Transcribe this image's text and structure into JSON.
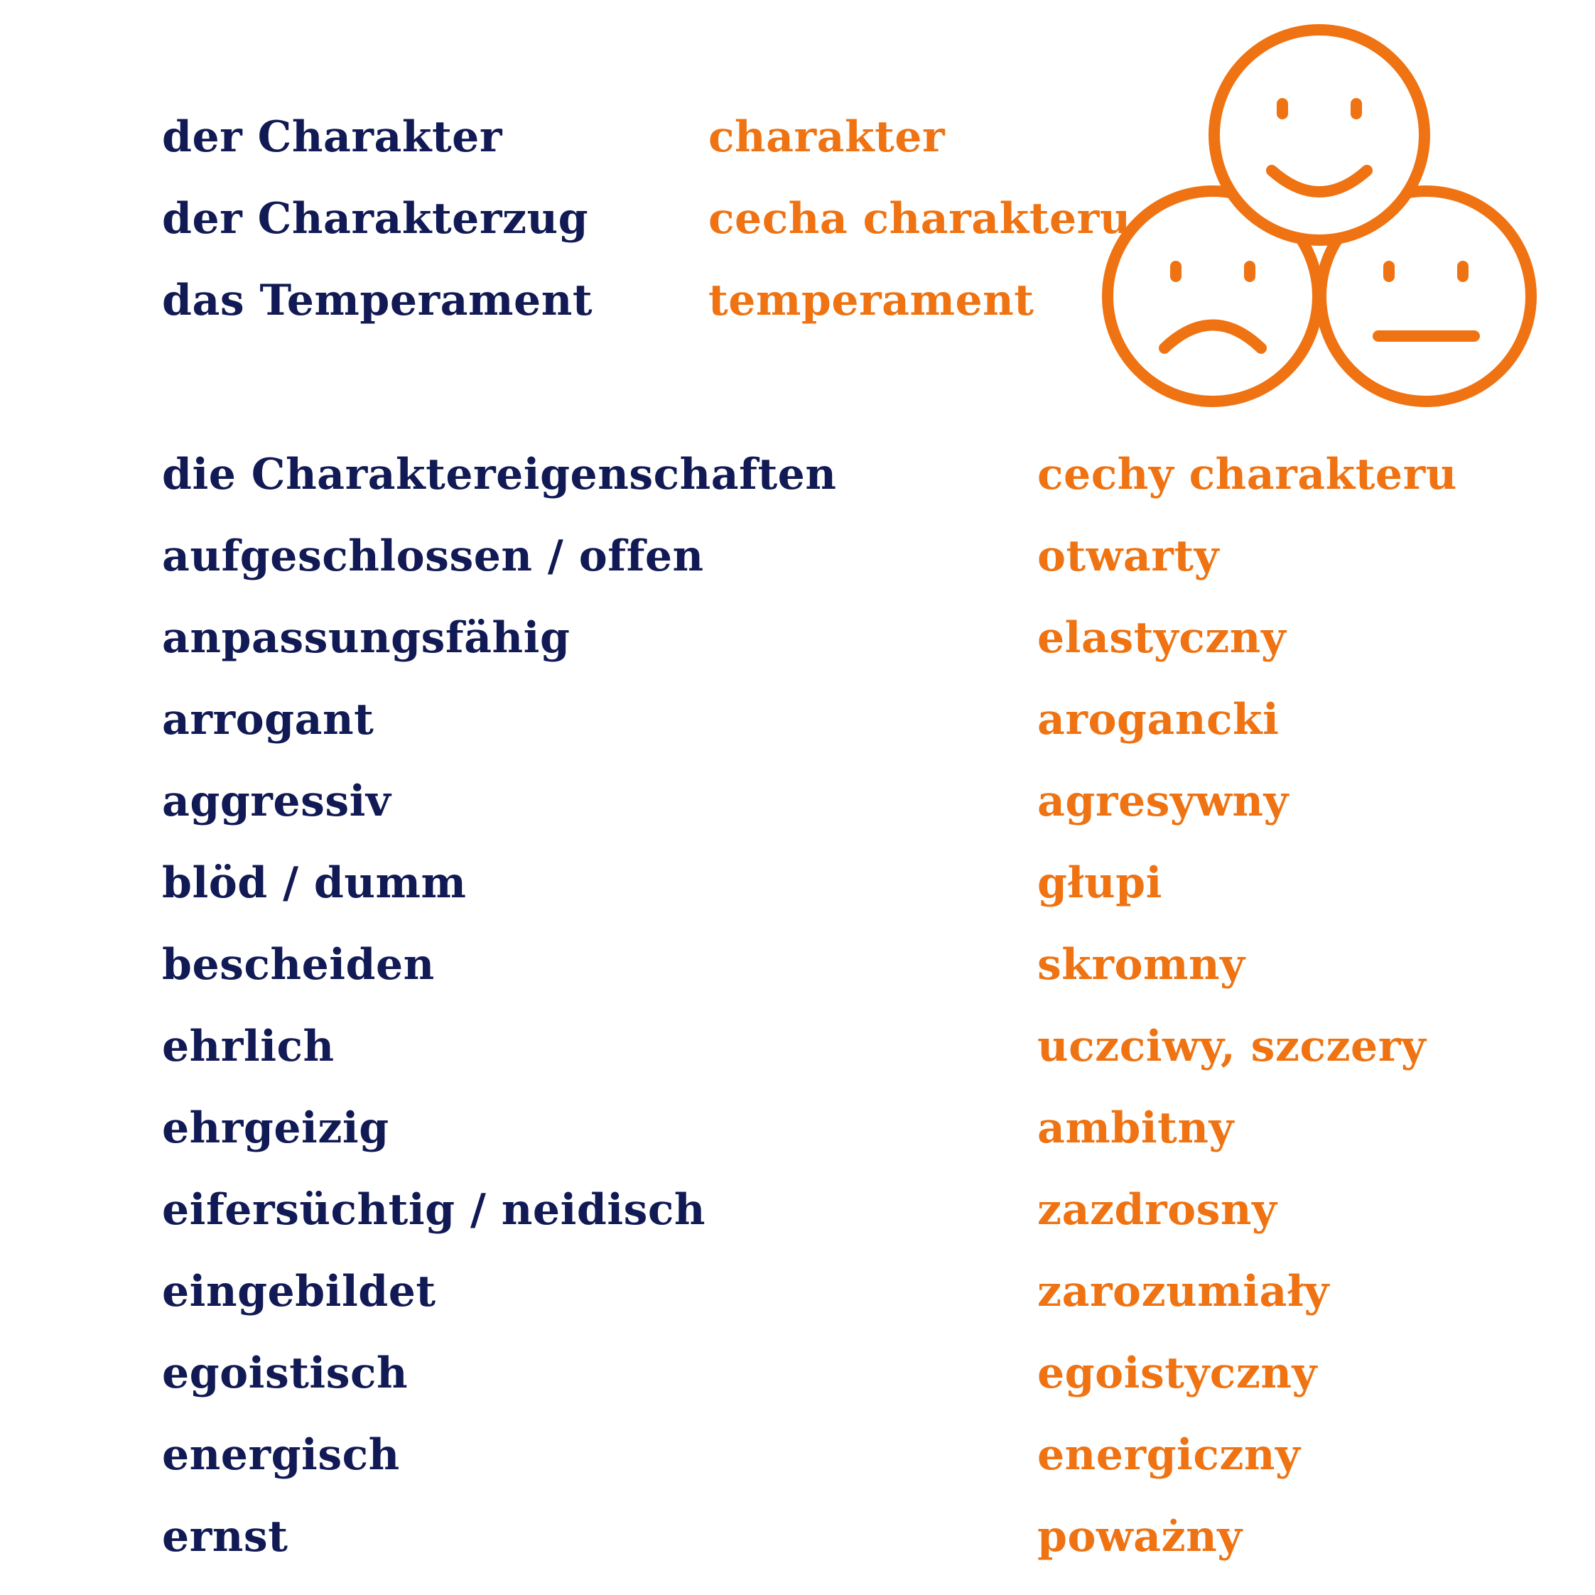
{
  "colors": {
    "german_text": "#111a54",
    "polish_text": "#ef7312",
    "icon": "#ef7312",
    "background": "#ffffff"
  },
  "top_terms": [
    {
      "de": "der Charakter",
      "pl": "charakter"
    },
    {
      "de": "der Charakterzug",
      "pl": "cecha charakteru"
    },
    {
      "de": "das Temperament",
      "pl": "temperament"
    }
  ],
  "icon": {
    "name": "emotion-faces-icon",
    "faces": [
      "happy-face-icon",
      "sad-face-icon",
      "neutral-face-icon"
    ]
  },
  "traits": [
    {
      "de": "die Charaktereigenschaften",
      "pl": "cechy charakteru"
    },
    {
      "de": "aufgeschlossen / offen",
      "pl": "otwarty"
    },
    {
      "de": "anpassungsfähig",
      "pl": "elastyczny"
    },
    {
      "de": "arrogant",
      "pl": "arogancki"
    },
    {
      "de": "aggressiv",
      "pl": "agresywny"
    },
    {
      "de": "blöd / dumm",
      "pl": "głupi"
    },
    {
      "de": "bescheiden",
      "pl": "skromny"
    },
    {
      "de": "ehrlich",
      "pl": "uczciwy, szczery"
    },
    {
      "de": "ehrgeizig",
      "pl": "ambitny"
    },
    {
      "de": "eifersüchtig / neidisch",
      "pl": "zazdrosny"
    },
    {
      "de": "eingebildet",
      "pl": "zarozumiały"
    },
    {
      "de": "egoistisch",
      "pl": "egoistyczny"
    },
    {
      "de": "energisch",
      "pl": "energiczny"
    },
    {
      "de": "ernst",
      "pl": "poważny"
    }
  ]
}
